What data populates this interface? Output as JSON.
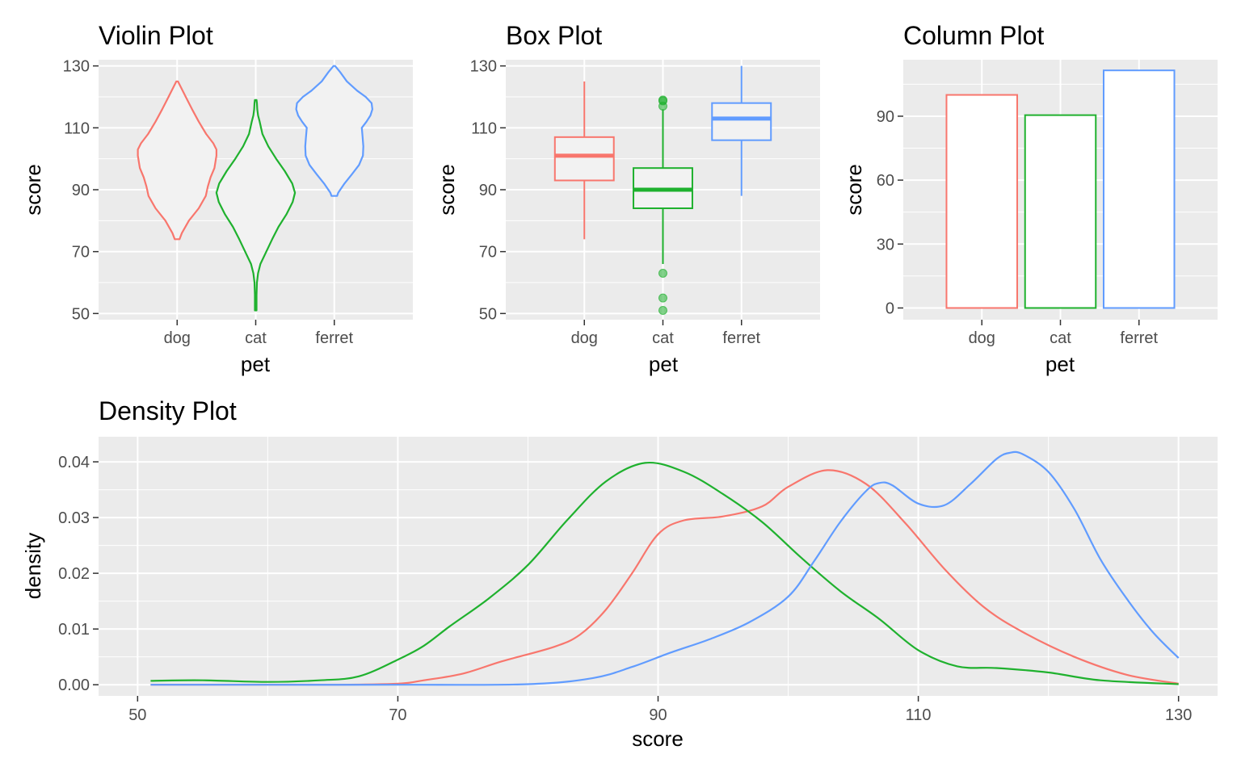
{
  "colors": {
    "dog": "#F8766D",
    "cat": "#1FB12E",
    "ferret": "#619CFF",
    "panel_bg": "#EBEBEB",
    "grid": "#FFFFFF",
    "violin_fill": "#F2F2F2",
    "box_fill": "#F2F2F2",
    "column_fill": "#FFFFFF"
  },
  "chart_data": [
    {
      "type": "violin",
      "title": "Violin Plot",
      "xlabel": "pet",
      "ylabel": "score",
      "categories": [
        "dog",
        "cat",
        "ferret"
      ],
      "ylim": [
        48,
        132
      ],
      "yticks": [
        50,
        70,
        90,
        110,
        130
      ],
      "grid": true,
      "series": [
        {
          "category": "dog",
          "min": 74,
          "max": 125,
          "profile": [
            [
              74,
              0.06
            ],
            [
              76,
              0.12
            ],
            [
              80,
              0.3
            ],
            [
              84,
              0.55
            ],
            [
              88,
              0.73
            ],
            [
              91,
              0.78
            ],
            [
              94,
              0.85
            ],
            [
              97,
              0.95
            ],
            [
              101,
              1.0
            ],
            [
              103,
              1.0
            ],
            [
              105,
              0.92
            ],
            [
              108,
              0.74
            ],
            [
              112,
              0.55
            ],
            [
              116,
              0.38
            ],
            [
              120,
              0.22
            ],
            [
              123,
              0.1
            ],
            [
              125,
              0.02
            ]
          ]
        },
        {
          "category": "cat",
          "min": 51,
          "max": 119,
          "profile": [
            [
              51,
              0.02
            ],
            [
              56,
              0.02
            ],
            [
              60,
              0.03
            ],
            [
              63,
              0.06
            ],
            [
              66,
              0.12
            ],
            [
              70,
              0.27
            ],
            [
              74,
              0.42
            ],
            [
              78,
              0.58
            ],
            [
              82,
              0.78
            ],
            [
              86,
              0.94
            ],
            [
              89,
              1.0
            ],
            [
              92,
              0.93
            ],
            [
              96,
              0.74
            ],
            [
              100,
              0.52
            ],
            [
              104,
              0.32
            ],
            [
              108,
              0.17
            ],
            [
              112,
              0.1
            ],
            [
              114,
              0.06
            ],
            [
              116,
              0.04
            ],
            [
              118,
              0.03
            ],
            [
              119,
              0.02
            ]
          ]
        },
        {
          "category": "ferret",
          "min": 88,
          "max": 130,
          "profile": [
            [
              88,
              0.07
            ],
            [
              89,
              0.1
            ],
            [
              92,
              0.26
            ],
            [
              95,
              0.45
            ],
            [
              98,
              0.63
            ],
            [
              101,
              0.73
            ],
            [
              104,
              0.74
            ],
            [
              107,
              0.72
            ],
            [
              110,
              0.7
            ],
            [
              112,
              0.82
            ],
            [
              114,
              0.92
            ],
            [
              116,
              0.97
            ],
            [
              118,
              0.95
            ],
            [
              120,
              0.8
            ],
            [
              122,
              0.58
            ],
            [
              125,
              0.32
            ],
            [
              128,
              0.15
            ],
            [
              130,
              0.02
            ]
          ]
        }
      ]
    },
    {
      "type": "box",
      "title": "Box Plot",
      "xlabel": "pet",
      "ylabel": "score",
      "categories": [
        "dog",
        "cat",
        "ferret"
      ],
      "ylim": [
        48,
        132
      ],
      "yticks": [
        50,
        70,
        90,
        110,
        130
      ],
      "grid": true,
      "series": [
        {
          "category": "dog",
          "whisker_low": 74,
          "q1": 93,
          "median": 101,
          "q3": 107,
          "whisker_high": 125,
          "outliers": []
        },
        {
          "category": "cat",
          "whisker_low": 66,
          "q1": 84,
          "median": 90,
          "q3": 97,
          "whisker_high": 116,
          "outliers": [
            51,
            55,
            63,
            117,
            118.7,
            119
          ]
        },
        {
          "category": "ferret",
          "whisker_low": 88,
          "q1": 106,
          "median": 113,
          "q3": 118,
          "whisker_high": 130,
          "outliers": []
        }
      ]
    },
    {
      "type": "bar",
      "title": "Column Plot",
      "xlabel": "pet",
      "ylabel": "score",
      "categories": [
        "dog",
        "cat",
        "ferret"
      ],
      "values": [
        100,
        90.5,
        111.5
      ],
      "ylim": [
        -5.5,
        116.5
      ],
      "yticks": [
        0,
        30,
        60,
        90
      ],
      "grid": true
    },
    {
      "type": "line",
      "title": "Density Plot",
      "xlabel": "score",
      "ylabel": "density",
      "xlim": [
        47,
        133
      ],
      "ylim": [
        -0.002,
        0.0445
      ],
      "xticks": [
        50,
        70,
        90,
        110,
        130
      ],
      "yticks": [
        0,
        0.01,
        0.02,
        0.03,
        0.04
      ],
      "yticklabels": [
        "0.00",
        "0.01",
        "0.02",
        "0.03",
        "0.04"
      ],
      "grid": true,
      "series": [
        {
          "category": "dog",
          "x": [
            51,
            55,
            60,
            65,
            70,
            72,
            75,
            78,
            82,
            84,
            86,
            88,
            90,
            92,
            95,
            98,
            100,
            103,
            106,
            109,
            112,
            115,
            118,
            122,
            126,
            130
          ],
          "y": [
            0,
            0,
            0,
            0,
            0.0002,
            0.0008,
            0.002,
            0.0042,
            0.0068,
            0.009,
            0.0135,
            0.02,
            0.027,
            0.0295,
            0.0302,
            0.032,
            0.0355,
            0.0385,
            0.036,
            0.029,
            0.0208,
            0.014,
            0.0095,
            0.005,
            0.0018,
            0.0002
          ]
        },
        {
          "category": "cat",
          "x": [
            51,
            55,
            60,
            64,
            67,
            70,
            72,
            74,
            77,
            80,
            83,
            86,
            89,
            92,
            95,
            98,
            101,
            104,
            107,
            110,
            113,
            116,
            120,
            124,
            130
          ],
          "y": [
            0.0007,
            0.0008,
            0.0005,
            0.0008,
            0.0015,
            0.0045,
            0.007,
            0.0105,
            0.0155,
            0.0215,
            0.0295,
            0.0365,
            0.0398,
            0.0382,
            0.0342,
            0.0292,
            0.0228,
            0.0168,
            0.0118,
            0.0062,
            0.0033,
            0.003,
            0.0022,
            0.0008,
            0.0001
          ]
        },
        {
          "category": "ferret",
          "x": [
            51,
            60,
            70,
            80,
            85,
            88,
            91,
            94,
            97,
            100,
            102,
            104,
            106,
            107,
            108,
            110,
            112,
            114,
            116,
            117,
            118,
            120,
            122,
            124,
            126,
            128,
            130
          ],
          "y": [
            0,
            0,
            0,
            0.0001,
            0.0012,
            0.0032,
            0.0058,
            0.0082,
            0.0112,
            0.0158,
            0.0222,
            0.0292,
            0.0348,
            0.0362,
            0.0358,
            0.0325,
            0.0322,
            0.036,
            0.0405,
            0.0416,
            0.0414,
            0.0382,
            0.0315,
            0.0225,
            0.0155,
            0.0095,
            0.0048
          ]
        }
      ]
    }
  ]
}
